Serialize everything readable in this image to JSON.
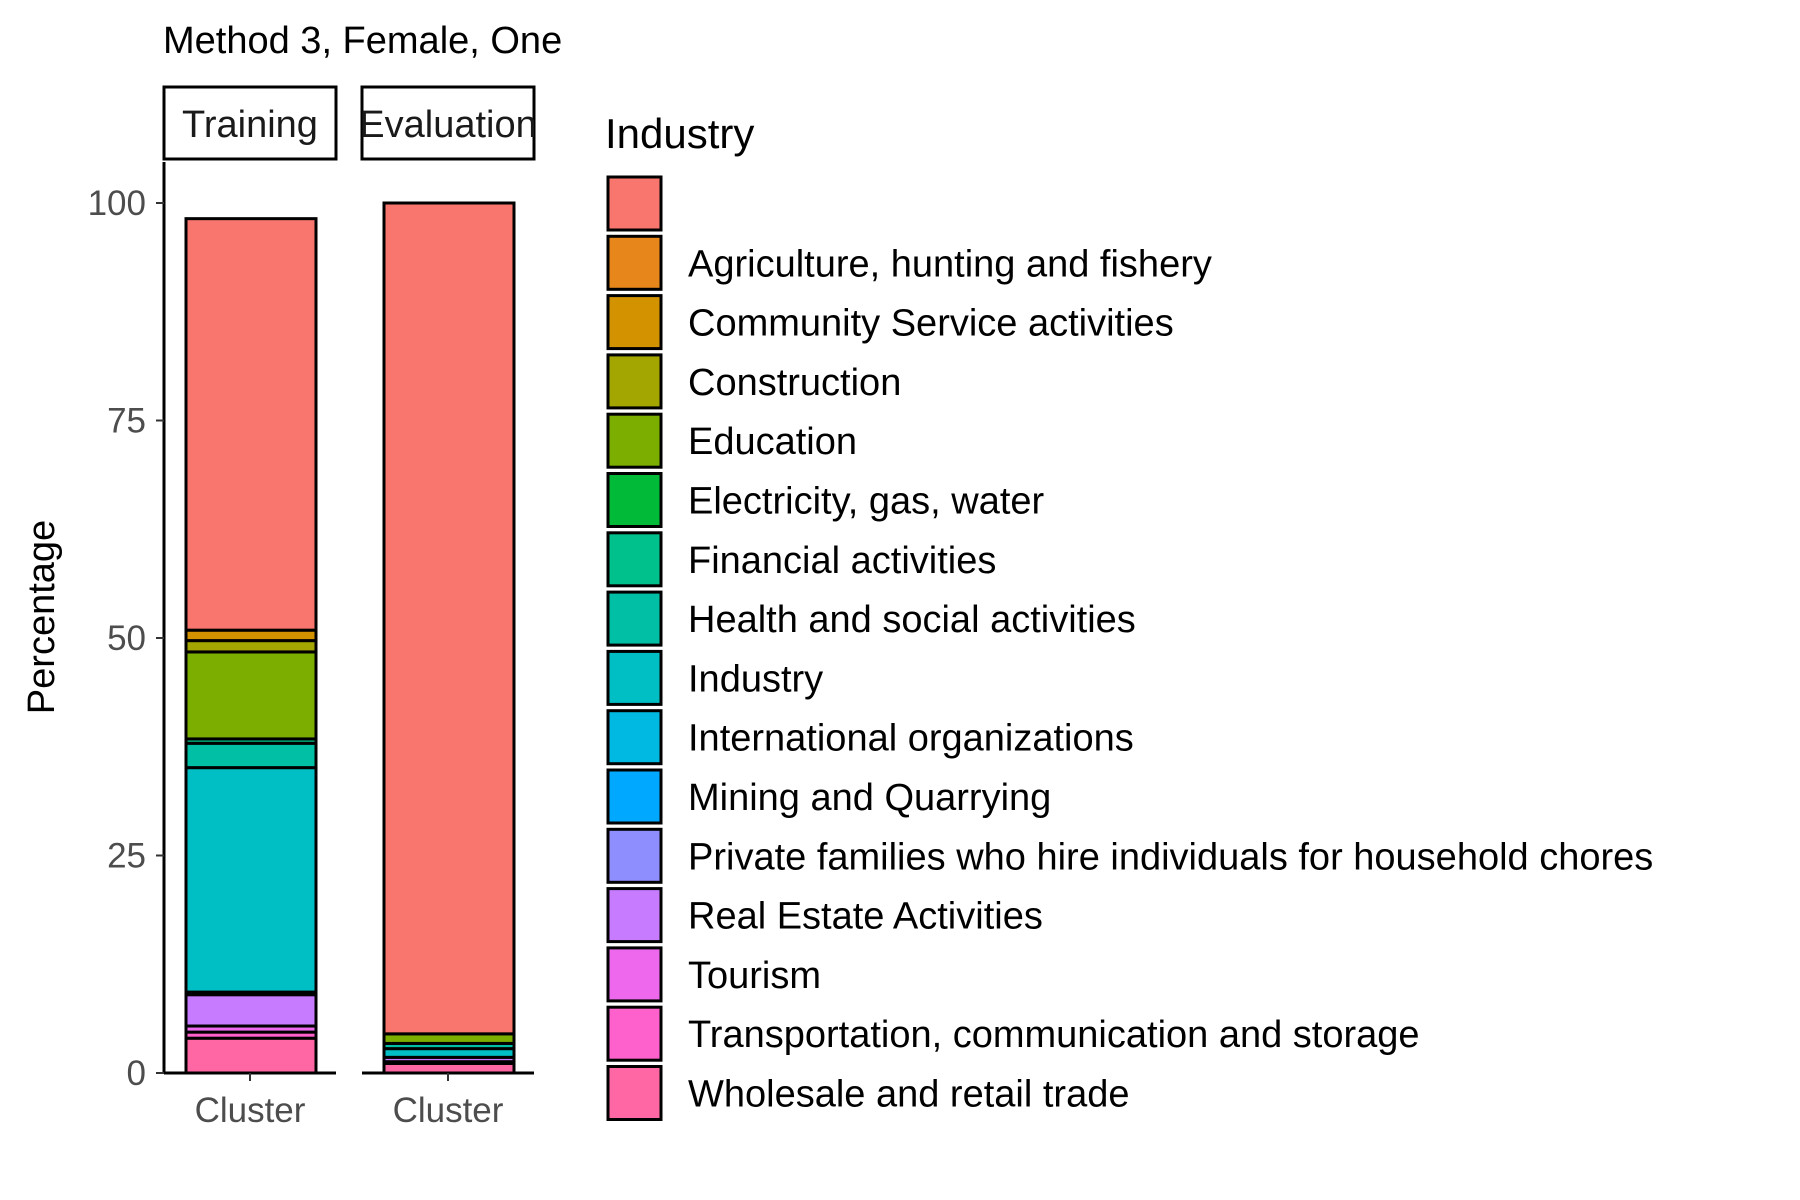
{
  "chart_data": {
    "type": "bar",
    "stacked": true,
    "title": "Method 3, Female, One",
    "ylabel": "Percentage",
    "xlabel": "",
    "ylim": [
      0,
      100
    ],
    "yticks": [
      0,
      25,
      50,
      75,
      100
    ],
    "grid": false,
    "legend_position": "right",
    "legend_title": "Industry",
    "categories": [
      "",
      "Agriculture, hunting and fishery",
      "Community Service activities",
      "Construction",
      "Education",
      "Electricity, gas, water",
      "Financial activities",
      "Health and social activities",
      "Industry",
      "International organizations",
      "Mining and Quarrying",
      "Private families who hire individuals for household chores",
      "Real Estate Activities",
      "Tourism",
      "Transportation, communication and storage",
      "Wholesale and retail trade"
    ],
    "colors": [
      "#F8766D",
      "#E7861B",
      "#D39200",
      "#A3A500",
      "#7CAE00",
      "#00BA38",
      "#00C08B",
      "#00BFA5",
      "#00BFC4",
      "#00B9E3",
      "#00A9FF",
      "#8F8EFF",
      "#C77CFF",
      "#ED68ED",
      "#FF61CC",
      "#FF67A4"
    ],
    "panels": [
      {
        "strip": "Training",
        "x_label": "Cluster",
        "values": [
          47.3,
          0,
          1.2,
          1.3,
          10.0,
          0,
          0.5,
          2.8,
          25.8,
          0,
          0.3,
          0,
          3.6,
          0.7,
          0.7,
          4.0
        ]
      },
      {
        "strip": "Evaluation",
        "x_label": "Cluster",
        "values": [
          95.5,
          0,
          0,
          0,
          1.1,
          0,
          0,
          0.6,
          1.0,
          0,
          0,
          0,
          0.5,
          0,
          0.2,
          1.1
        ]
      }
    ]
  }
}
